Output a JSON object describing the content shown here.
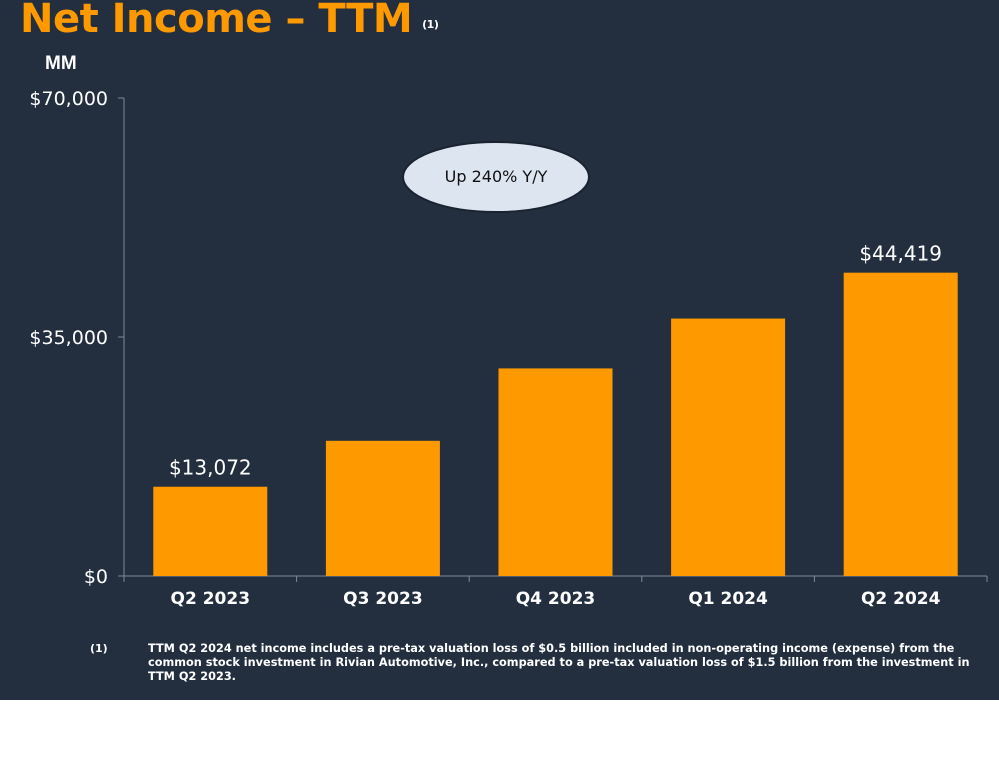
{
  "title": "Net Income – TTM",
  "title_note": "(1)",
  "unit": "MM",
  "colors": {
    "bar": "#ff9900",
    "background": "#232f3e",
    "axis": "#7f8a97",
    "callout_fill": "#dde5f0"
  },
  "callout": "Up 240% Y/Y",
  "chart_data": {
    "type": "bar",
    "categories": [
      "Q2 2023",
      "Q3 2023",
      "Q4 2023",
      "Q1 2024",
      "Q2 2024"
    ],
    "values": [
      13072,
      19800,
      30400,
      37700,
      44419
    ],
    "data_labels": [
      "$13,072",
      "",
      "",
      "",
      "$44,419"
    ],
    "ylim": [
      0,
      70000
    ],
    "yticks": [
      0,
      35000,
      70000
    ],
    "ytick_labels": [
      "$0",
      "$35,000",
      "$70,000"
    ],
    "ylabel": "MM",
    "grid": false,
    "legend": "none"
  },
  "footnote": {
    "marker": "(1)",
    "text": "TTM Q2 2024 net income includes a pre-tax valuation loss of $0.5 billion included in non-operating income (expense) from the common stock investment in Rivian Automotive, Inc., compared to a pre-tax valuation loss of $1.5 billion from the investment in TTM Q2 2023."
  }
}
